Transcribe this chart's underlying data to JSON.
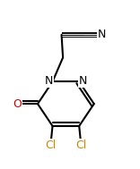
{
  "background": "#ffffff",
  "bond_color": "#000000",
  "N_color": "#000000",
  "O_color": "#cc0000",
  "Cl_color": "#cc8800",
  "lw": 1.5,
  "figsize": [
    1.56,
    1.89
  ],
  "dpi": 100,
  "xlim": [
    0.0,
    1.0
  ],
  "ylim": [
    0.0,
    1.0
  ]
}
